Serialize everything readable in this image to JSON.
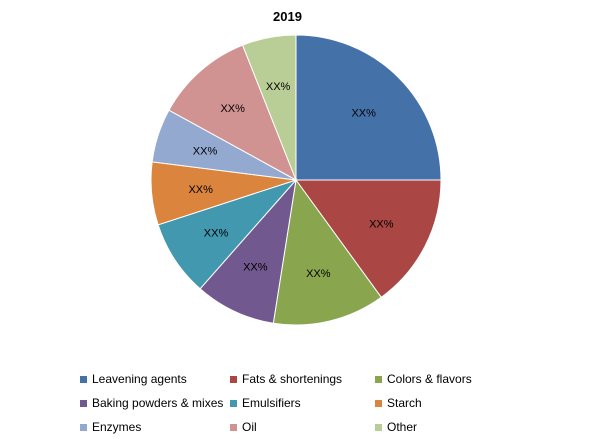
{
  "chart_data": {
    "type": "pie",
    "title": "2019",
    "legend_position": "bottom",
    "start_angle_deg": 0,
    "direction": "clockwise",
    "slices": [
      {
        "name": "Leavening agents",
        "value": 25,
        "label": "XX%",
        "color": "#4472A8"
      },
      {
        "name": "Fats & shortenings",
        "value": 15,
        "label": "XX%",
        "color": "#AA4643"
      },
      {
        "name": "Colors & flavors",
        "value": 12.5,
        "label": "XX%",
        "color": "#89A54E"
      },
      {
        "name": "Baking powders & mixes",
        "value": 9,
        "label": "XX%",
        "color": "#71588F"
      },
      {
        "name": "Emulsifiers",
        "value": 8.5,
        "label": "XX%",
        "color": "#4198AF"
      },
      {
        "name": "Starch",
        "value": 7,
        "label": "XX%",
        "color": "#DB843D"
      },
      {
        "name": "Enzymes",
        "value": 6,
        "label": "XX%",
        "color": "#93A9CF"
      },
      {
        "name": "Oil",
        "value": 11,
        "label": "XX%",
        "color": "#D19392"
      },
      {
        "name": "Other",
        "value": 6,
        "label": "XX%",
        "color": "#B9CD96"
      }
    ]
  }
}
